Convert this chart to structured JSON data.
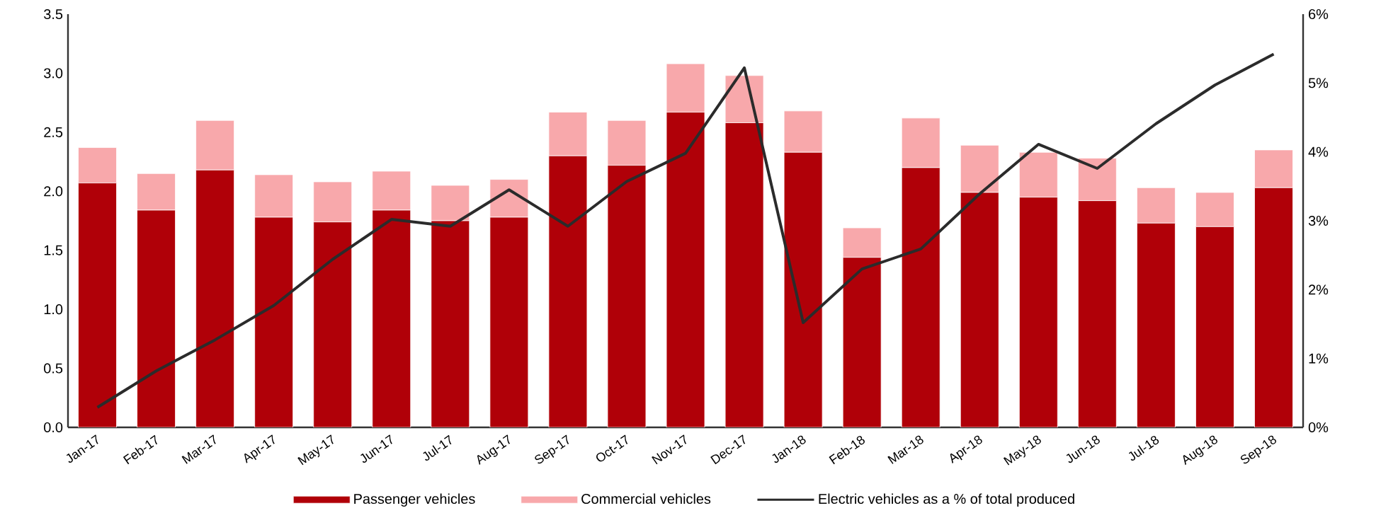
{
  "chart_data": {
    "type": "bar",
    "stacked": true,
    "legend": "bottom",
    "line_style": "solid",
    "marker": "none",
    "categories": [
      "Jan-17",
      "Feb-17",
      "Mar-17",
      "Apr-17",
      "May-17",
      "Jun-17",
      "Jul-17",
      "Aug-17",
      "Sep-17",
      "Oct-17",
      "Nov-17",
      "Dec-17",
      "Jan-18",
      "Feb-18",
      "Mar-18",
      "Apr-18",
      "May-18",
      "Jun-18",
      "Jul-18",
      "Aug-18",
      "Sep-18"
    ],
    "ylim": [
      0,
      3.5
    ],
    "yticks": [
      {
        "value": 0,
        "label": "0.0"
      },
      {
        "value": 0.5,
        "label": "0.5"
      },
      {
        "value": 1,
        "label": "1.0"
      },
      {
        "value": 1.5,
        "label": "1.5"
      },
      {
        "value": 2,
        "label": "2.0"
      },
      {
        "value": 2.5,
        "label": "2.5"
      },
      {
        "value": 3,
        "label": "3.0"
      },
      {
        "value": 3.5,
        "label": "3.5"
      }
    ],
    "y2lim": [
      0,
      6
    ],
    "y2ticks": [
      {
        "value": 0,
        "label": "0%"
      },
      {
        "value": 1,
        "label": "1%"
      },
      {
        "value": 2,
        "label": "2%"
      },
      {
        "value": 3,
        "label": "3%"
      },
      {
        "value": 4,
        "label": "4%"
      },
      {
        "value": 5,
        "label": "5%"
      },
      {
        "value": 6,
        "label": "6%"
      }
    ],
    "series": [
      {
        "name": "Passenger vehicles",
        "color": "#b00008",
        "values": [
          2.07,
          1.84,
          2.18,
          1.78,
          1.74,
          1.84,
          1.75,
          1.78,
          2.3,
          2.22,
          2.67,
          2.58,
          2.33,
          1.44,
          2.2,
          1.99,
          1.95,
          1.92,
          1.73,
          1.7,
          2.03
        ]
      },
      {
        "name": "Commercial vehicles",
        "color": "#f8a8ab",
        "values": [
          0.3,
          0.31,
          0.42,
          0.36,
          0.34,
          0.33,
          0.3,
          0.32,
          0.37,
          0.38,
          0.41,
          0.4,
          0.35,
          0.25,
          0.42,
          0.4,
          0.38,
          0.36,
          0.3,
          0.29,
          0.32
        ]
      },
      {
        "name": "Electric vehicles as a % of total produced",
        "type": "line",
        "axis": "y2",
        "color": "#2b2b2b",
        "values": [
          0.29,
          0.82,
          1.27,
          1.77,
          2.44,
          3.02,
          2.92,
          3.45,
          2.92,
          3.57,
          3.98,
          5.22,
          1.52,
          2.3,
          2.59,
          3.39,
          4.11,
          3.76,
          4.41,
          4.97,
          5.42
        ]
      }
    ]
  }
}
